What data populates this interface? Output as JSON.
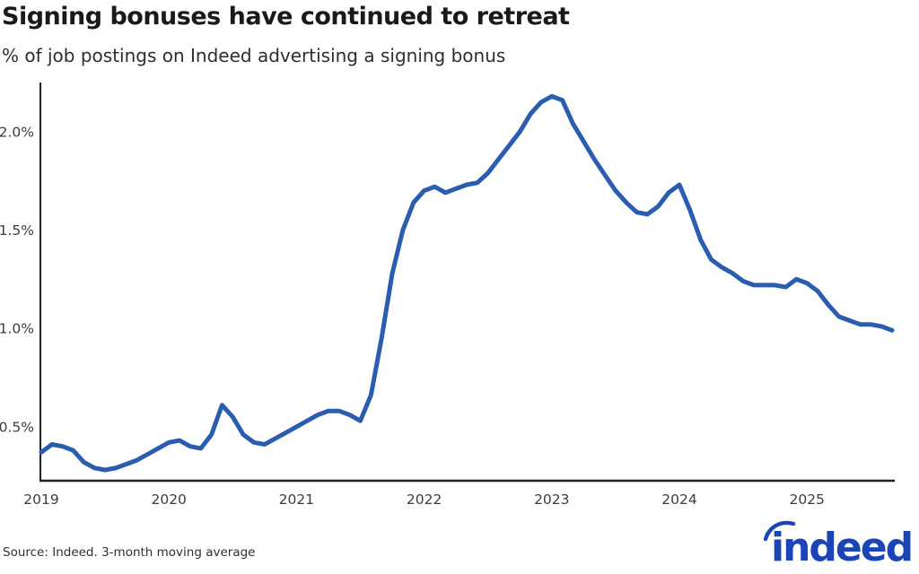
{
  "header": {
    "title": "Signing bonuses have continued to retreat",
    "subtitle": "% of job postings on Indeed advertising a signing bonus"
  },
  "footer": {
    "source": "Source: Indeed. 3-month moving average",
    "logo": "indeed"
  },
  "colors": {
    "line": "#2a5db0",
    "logo_blue": "#1b44b8",
    "axis": "#232323",
    "tick_label": "#3d3d3d"
  },
  "chart_data": {
    "type": "line",
    "title": "Signing bonuses have continued to retreat",
    "subtitle": "% of job postings on Indeed advertising a signing bonus",
    "note": "Source: Indeed. 3-month moving average",
    "x_unit": "month",
    "x_start": "2019-01",
    "x_end": "2025-09",
    "x_tick_labels": [
      "2019",
      "2020",
      "2021",
      "2022",
      "2023",
      "2024",
      "2025"
    ],
    "y_tick_values": [
      0.5,
      1.0,
      1.5,
      2.0
    ],
    "y_tick_labels": [
      "0.5%",
      "1.0%",
      "1.5%",
      "2.0%"
    ],
    "ylim": [
      0.23,
      2.25
    ],
    "grid": false,
    "legend": false,
    "series": [
      {
        "name": "% of job postings advertising a signing bonus (3-month moving average)",
        "values": [
          0.37,
          0.41,
          0.4,
          0.38,
          0.32,
          0.29,
          0.28,
          0.29,
          0.31,
          0.33,
          0.36,
          0.39,
          0.42,
          0.43,
          0.4,
          0.39,
          0.46,
          0.61,
          0.55,
          0.46,
          0.42,
          0.41,
          0.44,
          0.47,
          0.5,
          0.53,
          0.56,
          0.58,
          0.58,
          0.56,
          0.53,
          0.66,
          0.95,
          1.28,
          1.5,
          1.64,
          1.7,
          1.72,
          1.69,
          1.71,
          1.73,
          1.74,
          1.79,
          1.86,
          1.93,
          2.0,
          2.09,
          2.15,
          2.18,
          2.16,
          2.04,
          1.95,
          1.86,
          1.78,
          1.7,
          1.64,
          1.59,
          1.58,
          1.62,
          1.69,
          1.73,
          1.6,
          1.45,
          1.35,
          1.31,
          1.28,
          1.24,
          1.22,
          1.22,
          1.22,
          1.21,
          1.25,
          1.23,
          1.19,
          1.12,
          1.06,
          1.04,
          1.02,
          1.02,
          1.01,
          0.99
        ]
      }
    ]
  }
}
